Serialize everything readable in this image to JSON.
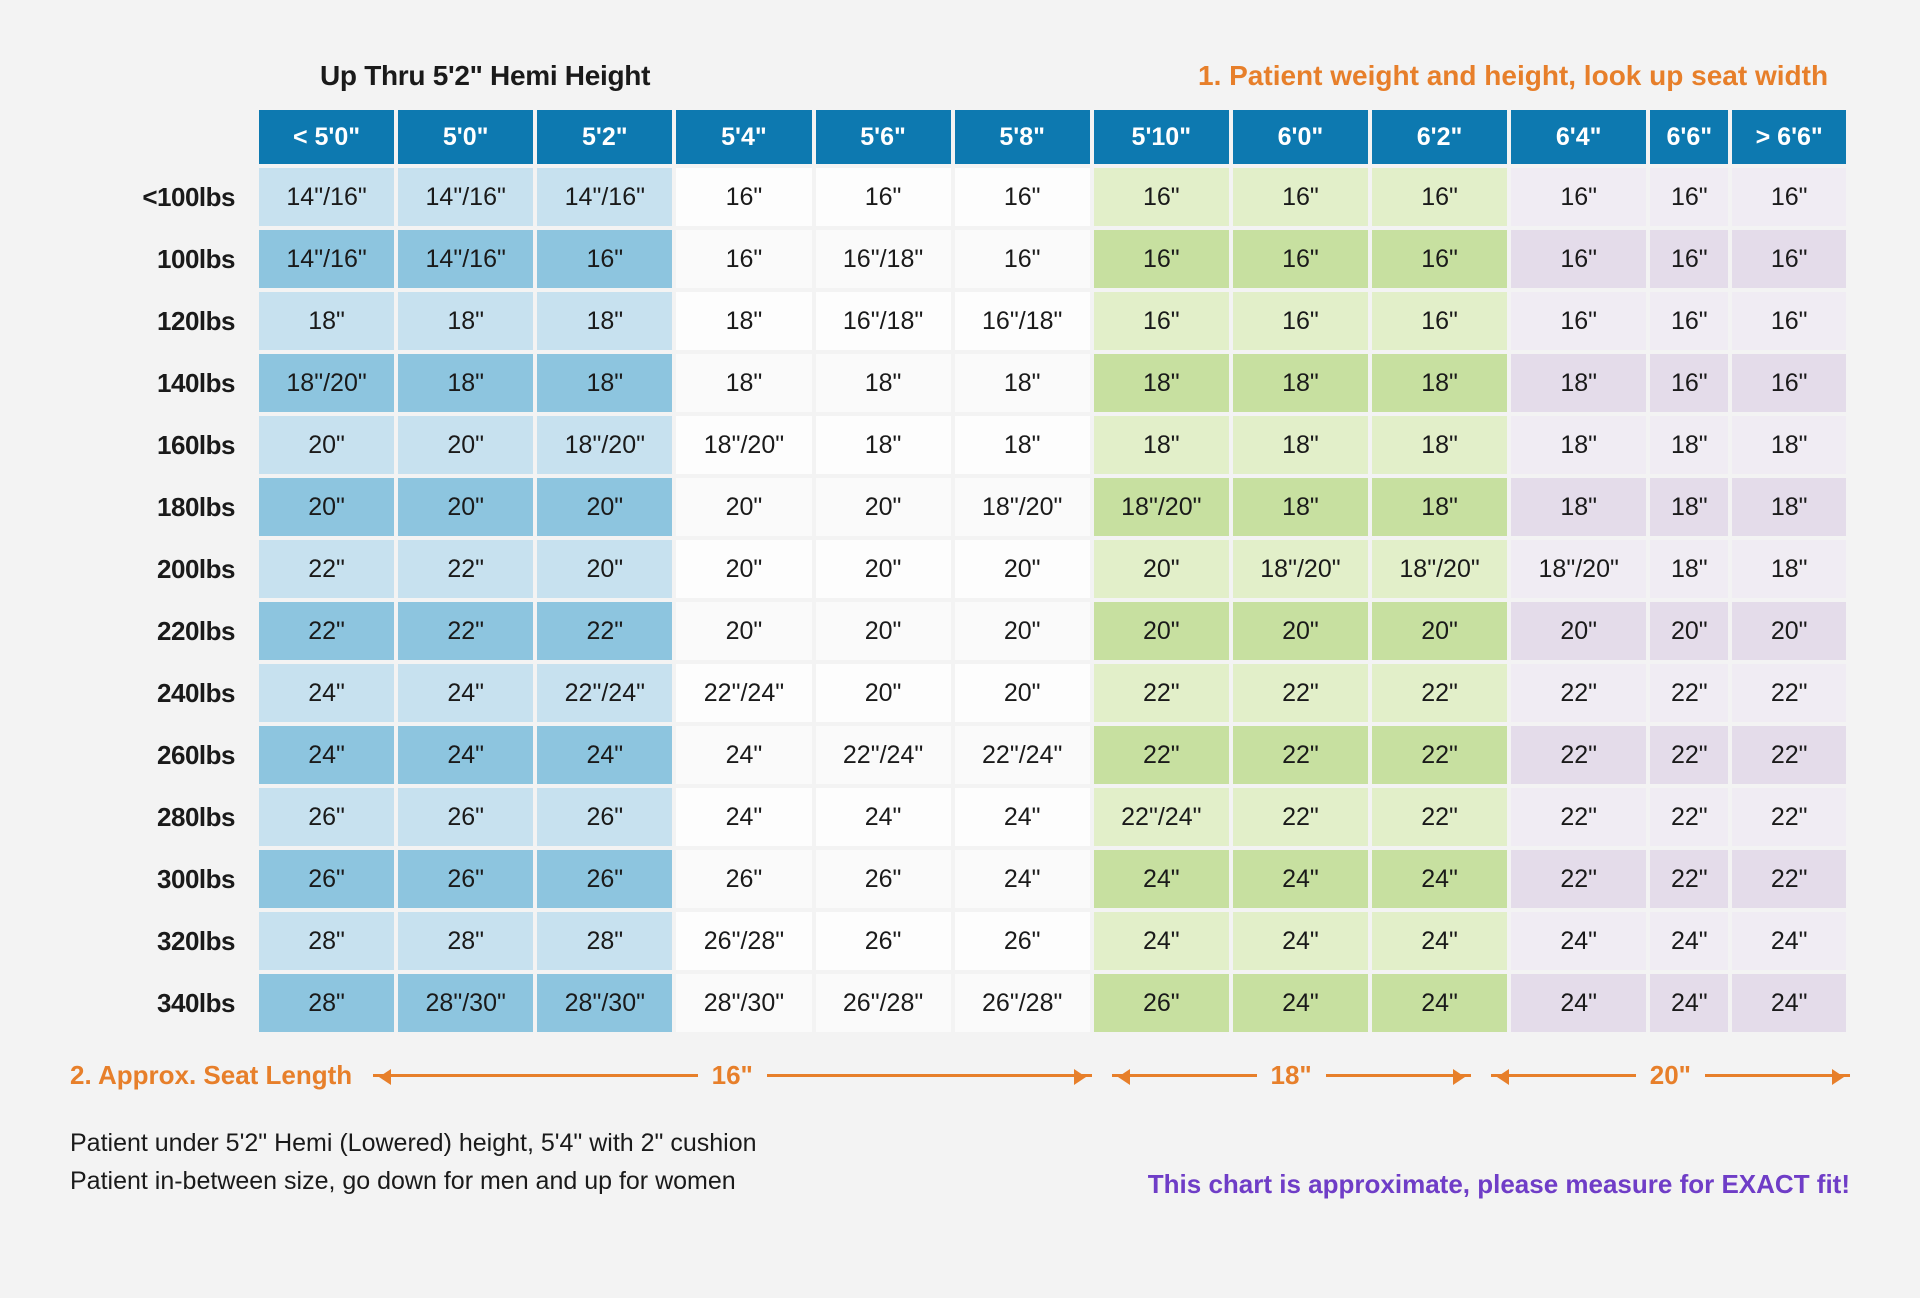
{
  "titles": {
    "left": "Up Thru 5'2\" Hemi Height",
    "right": "1. Patient weight and height, look up seat width"
  },
  "table": {
    "column_groups": [
      {
        "cols": [
          "< 5'0\"",
          "5'0\"",
          "5'2\""
        ],
        "group": 0
      },
      {
        "cols": [
          "5'4\"",
          "5'6\"",
          "5'8\""
        ],
        "group": 1
      },
      {
        "cols": [
          "5'10\"",
          "6'0\"",
          "6'2\""
        ],
        "group": 2
      },
      {
        "cols": [
          "6'4\"",
          "6'6\"",
          "> 6'6\""
        ],
        "group": 3
      }
    ],
    "rows": [
      {
        "label": "<100lbs",
        "shade": 0,
        "cells": [
          "14\"/16\"",
          "14\"/16\"",
          "14\"/16\"",
          "16\"",
          "16\"",
          "16\"",
          "16\"",
          "16\"",
          "16\"",
          "16\"",
          "16\"",
          "16\""
        ]
      },
      {
        "label": "100lbs",
        "shade": 1,
        "cells": [
          "14\"/16\"",
          "14\"/16\"",
          "16\"",
          "16\"",
          "16\"/18\"",
          "16\"",
          "16\"",
          "16\"",
          "16\"",
          "16\"",
          "16\"",
          "16\""
        ]
      },
      {
        "label": "120lbs",
        "shade": 0,
        "cells": [
          "18\"",
          "18\"",
          "18\"",
          "18\"",
          "16\"/18\"",
          "16\"/18\"",
          "16\"",
          "16\"",
          "16\"",
          "16\"",
          "16\"",
          "16\""
        ]
      },
      {
        "label": "140lbs",
        "shade": 1,
        "cells": [
          "18\"/20\"",
          "18\"",
          "18\"",
          "18\"",
          "18\"",
          "18\"",
          "18\"",
          "18\"",
          "18\"",
          "18\"",
          "16\"",
          "16\""
        ]
      },
      {
        "label": "160lbs",
        "shade": 0,
        "cells": [
          "20\"",
          "20\"",
          "18\"/20\"",
          "18\"/20\"",
          "18\"",
          "18\"",
          "18\"",
          "18\"",
          "18\"",
          "18\"",
          "18\"",
          "18\""
        ]
      },
      {
        "label": "180lbs",
        "shade": 1,
        "cells": [
          "20\"",
          "20\"",
          "20\"",
          "20\"",
          "20\"",
          "18\"/20\"",
          "18\"/20\"",
          "18\"",
          "18\"",
          "18\"",
          "18\"",
          "18\""
        ]
      },
      {
        "label": "200lbs",
        "shade": 0,
        "cells": [
          "22\"",
          "22\"",
          "20\"",
          "20\"",
          "20\"",
          "20\"",
          "20\"",
          "18\"/20\"",
          "18\"/20\"",
          "18\"/20\"",
          "18\"",
          "18\""
        ]
      },
      {
        "label": "220lbs",
        "shade": 1,
        "cells": [
          "22\"",
          "22\"",
          "22\"",
          "20\"",
          "20\"",
          "20\"",
          "20\"",
          "20\"",
          "20\"",
          "20\"",
          "20\"",
          "20\""
        ]
      },
      {
        "label": "240lbs",
        "shade": 0,
        "cells": [
          "24\"",
          "24\"",
          "22\"/24\"",
          "22\"/24\"",
          "20\"",
          "20\"",
          "22\"",
          "22\"",
          "22\"",
          "22\"",
          "22\"",
          "22\""
        ]
      },
      {
        "label": "260lbs",
        "shade": 1,
        "cells": [
          "24\"",
          "24\"",
          "24\"",
          "24\"",
          "22\"/24\"",
          "22\"/24\"",
          "22\"",
          "22\"",
          "22\"",
          "22\"",
          "22\"",
          "22\""
        ]
      },
      {
        "label": "280lbs",
        "shade": 0,
        "cells": [
          "26\"",
          "26\"",
          "26\"",
          "24\"",
          "24\"",
          "24\"",
          "22\"/24\"",
          "22\"",
          "22\"",
          "22\"",
          "22\"",
          "22\""
        ]
      },
      {
        "label": "300lbs",
        "shade": 1,
        "cells": [
          "26\"",
          "26\"",
          "26\"",
          "26\"",
          "26\"",
          "24\"",
          "24\"",
          "24\"",
          "24\"",
          "22\"",
          "22\"",
          "22\""
        ]
      },
      {
        "label": "320lbs",
        "shade": 0,
        "cells": [
          "28\"",
          "28\"",
          "28\"",
          "26\"/28\"",
          "26\"",
          "26\"",
          "24\"",
          "24\"",
          "24\"",
          "24\"",
          "24\"",
          "24\""
        ]
      },
      {
        "label": "340lbs",
        "shade": 1,
        "cells": [
          "28\"",
          "28\"/30\"",
          "28\"/30\"",
          "28\"/30\"",
          "26\"/28\"",
          "26\"/28\"",
          "26\"",
          "24\"",
          "24\"",
          "24\"",
          "24\"",
          "24\""
        ]
      }
    ]
  },
  "seat_length": {
    "label": "2. Approx. Seat Length",
    "segments": [
      "16\"",
      "18\"",
      "20\""
    ]
  },
  "notes": {
    "line1": "Patient under 5'2\" Hemi (Lowered) height, 5'4\" with 2\" cushion",
    "line2": "Patient in-between size, go down for men and up for women",
    "right": "This chart is approximate, please measure for EXACT fit!"
  }
}
